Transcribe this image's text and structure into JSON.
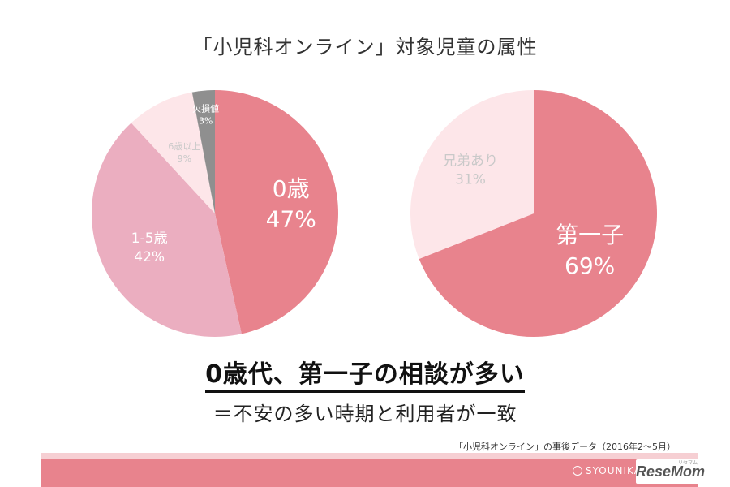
{
  "title": "「小児科オンライン」対象児童の属性",
  "headline": "0歳代、第一子の相談が多い",
  "subline": "＝不安の多い時期と利用者が一致",
  "source": "「小児科オンライン」の事後データ（2016年2〜5月）",
  "brand": "SYOUNIKA",
  "logo": {
    "text": "ReseMom",
    "reading": "リセマム"
  },
  "chart_data": [
    {
      "type": "pie",
      "slices": [
        {
          "label": "0歳",
          "value": 47,
          "value_label": "47%",
          "color": "#e8838d"
        },
        {
          "label": "1-5歳",
          "value": 42,
          "value_label": "42%",
          "color": "#ebaec0"
        },
        {
          "label": "6歳以上",
          "value": 9,
          "value_label": "9%",
          "color": "#fde6e9"
        },
        {
          "label": "欠損値",
          "value": 3,
          "value_label": "3%",
          "color": "#8f8f8f"
        }
      ]
    },
    {
      "type": "pie",
      "slices": [
        {
          "label": "第一子",
          "value": 69,
          "value_label": "69%",
          "color": "#e8838d"
        },
        {
          "label": "兄弟あり",
          "value": 31,
          "value_label": "31%",
          "color": "#fde6e9"
        }
      ]
    }
  ]
}
